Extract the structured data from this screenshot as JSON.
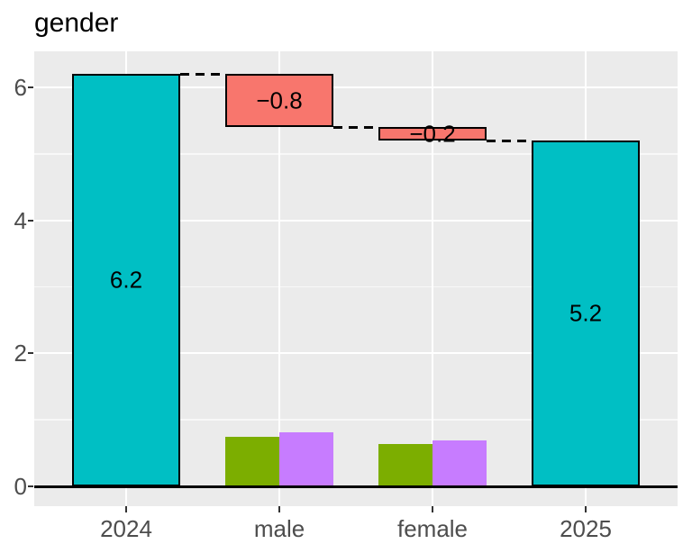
{
  "chart_data": {
    "type": "bar",
    "subtype": "waterfall",
    "title": "gender",
    "categories": [
      "2024",
      "male",
      "female",
      "2025"
    ],
    "xlabel": "",
    "ylabel": "",
    "y_axis": {
      "major_ticks": [
        0,
        2,
        4,
        6
      ],
      "minor_ticks": [
        1,
        3,
        5
      ],
      "range": [
        -0.3,
        6.54
      ]
    },
    "grid": true,
    "legend_position": "none",
    "bars": [
      {
        "category": "2024",
        "start": 0,
        "end": 6.2,
        "value": 6.2,
        "label": "6.2",
        "color": "#00BFC4",
        "outlined": true,
        "width": 1
      },
      {
        "category": "male",
        "start": 6.2,
        "end": 5.4,
        "value": -0.8,
        "label": "−0.8",
        "color": "#F8766D",
        "outlined": true,
        "width": 1
      },
      {
        "category": "female",
        "start": 5.4,
        "end": 5.2,
        "value": -0.2,
        "label": "−0.2",
        "color": "#F8766D",
        "outlined": true,
        "width": 1
      },
      {
        "category": "2025",
        "start": 0,
        "end": 5.2,
        "value": 5.2,
        "label": "5.2",
        "color": "#00BFC4",
        "outlined": true,
        "width": 1
      }
    ],
    "sub_bars": [
      {
        "category": "male",
        "slot": "left",
        "value": 0.75,
        "color": "#7CAE00"
      },
      {
        "category": "male",
        "slot": "right",
        "value": 0.81,
        "color": "#C77CFF"
      },
      {
        "category": "female",
        "slot": "left",
        "value": 0.64,
        "color": "#7CAE00"
      },
      {
        "category": "female",
        "slot": "right",
        "value": 0.69,
        "color": "#C77CFF"
      }
    ],
    "connectors": [
      {
        "level": 6.2,
        "from": "2024",
        "to": "male"
      },
      {
        "level": 5.4,
        "from": "male",
        "to": "female"
      },
      {
        "level": 5.2,
        "from": "female",
        "to": "2025"
      }
    ],
    "colors": {
      "teal": "#00BFC4",
      "red": "#F8766D",
      "green": "#7CAE00",
      "purple": "#C77CFF",
      "panel_background": "#EBEBEB",
      "grid_major": "#FFFFFF",
      "axis_text": "#4D4D4D",
      "title_text": "#000000",
      "bar_outline": "#000000"
    }
  }
}
